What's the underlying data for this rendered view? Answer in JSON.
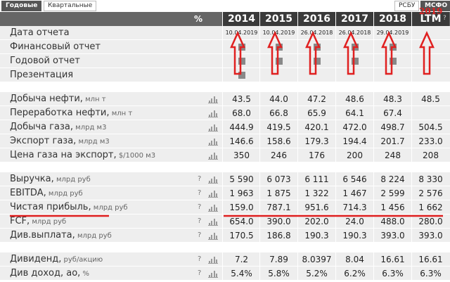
{
  "tabs": [
    "Годовые",
    "Квартальные"
  ],
  "standards": [
    "РСБУ",
    "МСФО"
  ],
  "annotation": "2019",
  "header": {
    "unit": "%",
    "columns": [
      "2014",
      "2015",
      "2016",
      "2017",
      "2018",
      "LTM"
    ],
    "help": "?"
  },
  "sections": [
    {
      "rows": [
        {
          "label": "Дата отчета",
          "values": [
            "10.04.2019",
            "10.04.2019",
            "26.04.2018",
            "26.04.2018",
            "29.04.2019",
            null
          ]
        },
        {
          "label": "Финансовый отчет",
          "files": [
            true,
            true,
            true,
            true,
            true,
            false
          ]
        },
        {
          "label": "Годовой отчет",
          "files": [
            true,
            true,
            true,
            true,
            true,
            false
          ]
        },
        {
          "label": "Презентация",
          "files": [
            true,
            false,
            false,
            false,
            false,
            false
          ]
        }
      ]
    },
    {
      "rows": [
        {
          "label": "Добыча нефти,",
          "unit": "млн т",
          "chart": true,
          "values": [
            "43.5",
            "44.0",
            "47.2",
            "48.6",
            "48.3",
            "48.5"
          ]
        },
        {
          "label": "Переработка нефти,",
          "unit": "млн т",
          "chart": true,
          "values": [
            "68.0",
            "66.8",
            "65.9",
            "64.1",
            "67.4",
            null
          ]
        },
        {
          "label": "Добыча газа,",
          "unit": "млрд м3",
          "chart": true,
          "values": [
            "444.9",
            "419.5",
            "420.1",
            "472.0",
            "498.7",
            "504.5"
          ]
        },
        {
          "label": "Экспорт газа,",
          "unit": "млрд м3",
          "chart": true,
          "values": [
            "146.6",
            "158.6",
            "179.3",
            "194.4",
            "201.7",
            "233.0"
          ]
        },
        {
          "label": "Цена газа на экспорт,",
          "unit": "$/1000 м3",
          "chart": true,
          "values": [
            "350",
            "246",
            "176",
            "200",
            "248",
            "208"
          ]
        }
      ]
    },
    {
      "rows": [
        {
          "label": "Выручка,",
          "unit": "млрд руб",
          "help": "?",
          "chart": true,
          "values": [
            "5 590",
            "6 073",
            "6 111",
            "6 546",
            "8 224",
            "8 330"
          ]
        },
        {
          "label": "EBITDA,",
          "unit": "млрд руб",
          "help": "?",
          "chart": true,
          "values": [
            "1 963",
            "1 875",
            "1 322",
            "1 467",
            "2 599",
            "2 576"
          ]
        },
        {
          "label": "Чистая прибыль,",
          "unit": "млрд руб",
          "help": "?",
          "chart": true,
          "values": [
            "159.0",
            "787.1",
            "951.6",
            "714.3",
            "1 456",
            "1 662"
          ]
        },
        {
          "label": "FCF,",
          "unit": "млрд руб",
          "help": "?",
          "chart": true,
          "values": [
            "654.0",
            "390.0",
            "202.0",
            "24.0",
            "488.0",
            "280.0"
          ]
        },
        {
          "label": "Див.выплата,",
          "unit": "млрд руб",
          "help": "?",
          "chart": true,
          "values": [
            "170.5",
            "186.8",
            "190.3",
            "190.3",
            "393.0",
            "393.0"
          ]
        }
      ]
    },
    {
      "rows": [
        {
          "label": "Дивиденд,",
          "unit": "руб/акцию",
          "help": "?",
          "chart": true,
          "values": [
            "7.2",
            "7.89",
            "8.0397",
            "8.04",
            "16.61",
            "16.61"
          ]
        },
        {
          "label": "Див доход, ао,",
          "unit": "%",
          "help": "?",
          "chart": true,
          "values": [
            "5.4%",
            "5.8%",
            "5.2%",
            "6.2%",
            "6.3%",
            "6.3%"
          ]
        }
      ]
    }
  ]
}
